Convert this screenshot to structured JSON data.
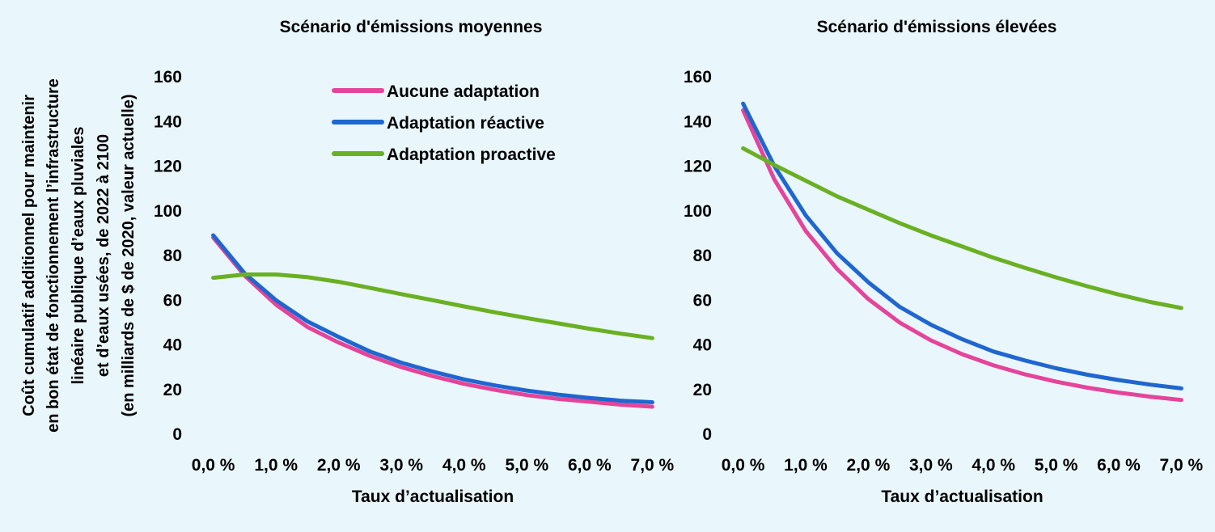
{
  "figure": {
    "ylabel_lines": [
      "Coût cumulatif additionnel pour maintenir",
      "en bon état de fonctionnement l’infrastructure",
      "linéaire publique d’eaux pluviales",
      "et d’eaux usées, de 2022 à 2100",
      "(en milliards de $ de 2020, valeur actuelle)"
    ]
  },
  "chart_data": [
    {
      "type": "line",
      "title": "Scénario d'émissions moyennes",
      "xlabel": "Taux d’actualisation",
      "x": [
        0,
        0.5,
        1,
        1.5,
        2,
        2.5,
        3,
        3.5,
        4,
        4.5,
        5,
        5.5,
        6,
        6.5,
        7
      ],
      "x_ticks": [
        0,
        1,
        2,
        3,
        4,
        5,
        6,
        7
      ],
      "x_tick_labels": [
        "0,0 %",
        "1,0 %",
        "2,0 %",
        "3,0 %",
        "4,0 %",
        "5,0 %",
        "6,0 %",
        "7,0 %"
      ],
      "xlim": [
        -0.15,
        7.15
      ],
      "ylim": [
        0,
        160
      ],
      "y_ticks": [
        0,
        20,
        40,
        60,
        80,
        100,
        120,
        140,
        160
      ],
      "grid": false,
      "legend": "top-right",
      "series": [
        {
          "name": "Aucune adaptation",
          "color": "#e5449a",
          "values": [
            88,
            71,
            58,
            48,
            41,
            35,
            30,
            26,
            22.5,
            19.8,
            17.5,
            15.8,
            14.5,
            13.2,
            12.3
          ]
        },
        {
          "name": "Adaptation réactive",
          "color": "#1f66d0",
          "values": [
            89,
            72,
            60,
            50.5,
            43.5,
            37,
            32,
            28,
            24.5,
            21.8,
            19.5,
            17.7,
            16.2,
            15,
            14.3
          ]
        },
        {
          "name": "Adaptation proactive",
          "color": "#6ab023",
          "values": [
            70,
            71.5,
            71.5,
            70.3,
            68.2,
            65.5,
            62.7,
            60,
            57.2,
            54.5,
            52,
            49.6,
            47.2,
            45,
            43
          ]
        }
      ]
    },
    {
      "type": "line",
      "title": "Scénario d'émissions élevées",
      "xlabel": "Taux d’actualisation",
      "x": [
        0,
        0.5,
        1,
        1.5,
        2,
        2.5,
        3,
        3.5,
        4,
        4.5,
        5,
        5.5,
        6,
        6.5,
        7
      ],
      "x_ticks": [
        0,
        1,
        2,
        3,
        4,
        5,
        6,
        7
      ],
      "x_tick_labels": [
        "0,0 %",
        "1,0 %",
        "2,0 %",
        "3,0 %",
        "4,0 %",
        "5,0 %",
        "6,0 %",
        "7,0 %"
      ],
      "xlim": [
        -0.15,
        7.15
      ],
      "ylim": [
        0,
        160
      ],
      "y_ticks": [
        0,
        20,
        40,
        60,
        80,
        100,
        120,
        140,
        160
      ],
      "grid": false,
      "legend": "none",
      "series": [
        {
          "name": "Aucune adaptation",
          "color": "#e5449a",
          "values": [
            145,
            114,
            91,
            74,
            60.5,
            50,
            42,
            35.8,
            30.8,
            26.8,
            23.5,
            20.8,
            18.6,
            16.8,
            15.3
          ]
        },
        {
          "name": "Adaptation réactive",
          "color": "#1f66d0",
          "values": [
            148,
            120,
            98,
            81,
            68,
            57,
            49,
            42.5,
            37,
            33,
            29.5,
            26.6,
            24.2,
            22.2,
            20.5
          ]
        },
        {
          "name": "Adaptation proactive",
          "color": "#6ab023",
          "values": [
            128,
            120.5,
            113.5,
            106.5,
            100.5,
            94.5,
            89,
            84,
            79,
            74.5,
            70.2,
            66.2,
            62.5,
            59.2,
            56.5
          ]
        }
      ]
    }
  ]
}
